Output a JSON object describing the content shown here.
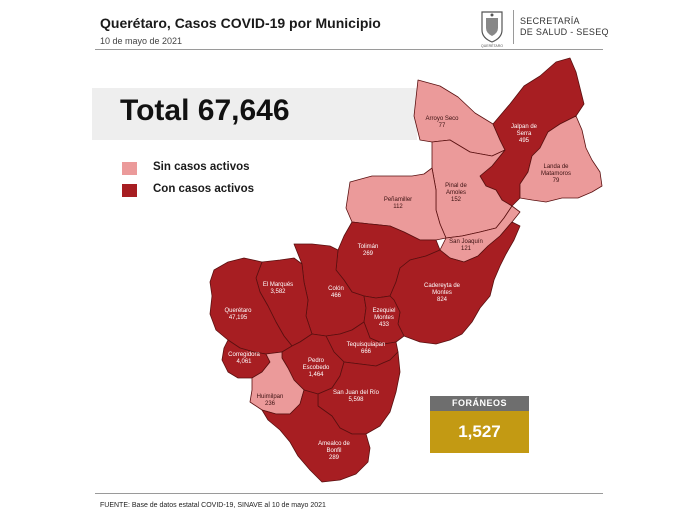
{
  "header": {
    "title": "Querétaro, Casos COVID-19 por Municipio",
    "date": "10 de mayo de 2021",
    "org_line1": "SECRETARÍA",
    "org_line2": "DE SALUD - SESEQ",
    "logo_text": "QUERÉTARO"
  },
  "total": "Total 67,646",
  "legend": {
    "inactive": {
      "label": "Sin casos activos",
      "color": "#eb9a9a"
    },
    "active": {
      "label": "Con casos activos",
      "color": "#a71e22"
    }
  },
  "municipalities": {
    "arroyo_seco": {
      "name": "Arroyo Seco",
      "cases": "77",
      "status": "inactive"
    },
    "jalpan": {
      "name1": "Jalpan de",
      "name2": "Serra",
      "cases": "495",
      "status": "active"
    },
    "landa": {
      "name1": "Landa de",
      "name2": "Matamoros",
      "cases": "79",
      "status": "inactive"
    },
    "pinal": {
      "name1": "Pinal de",
      "name2": "Amoles",
      "cases": "152",
      "status": "inactive"
    },
    "penamiller": {
      "name": "Peñamiller",
      "cases": "112",
      "status": "inactive"
    },
    "san_joaquin": {
      "name": "San Joaquín",
      "cases": "121",
      "status": "inactive"
    },
    "toliman": {
      "name": "Tolimán",
      "cases": "269",
      "status": "active"
    },
    "cadereyta": {
      "name1": "Cadereyta de",
      "name2": "Montes",
      "cases": "824",
      "status": "active"
    },
    "colon": {
      "name": "Colón",
      "cases": "466",
      "status": "active"
    },
    "el_marques": {
      "name": "El Marqués",
      "cases": "3,582",
      "status": "active"
    },
    "queretaro": {
      "name": "Querétaro",
      "cases": "47,195",
      "status": "active"
    },
    "ezequiel": {
      "name1": "Ezequiel",
      "name2": "Montes",
      "cases": "433",
      "status": "active"
    },
    "tequisquiapan": {
      "name": "Tequisquiapan",
      "cases": "666",
      "status": "active"
    },
    "corregidora": {
      "name": "Corregidora",
      "cases": "4,061",
      "status": "active"
    },
    "pedro_escobedo": {
      "name1": "Pedro",
      "name2": "Escobedo",
      "cases": "1,464",
      "status": "active"
    },
    "huimilpan": {
      "name": "Huimilpan",
      "cases": "236",
      "status": "inactive"
    },
    "san_juan": {
      "name": "San Juan del Río",
      "cases": "5,598",
      "status": "active"
    },
    "amealco": {
      "name1": "Amealco de",
      "name2": "Bonfil",
      "cases": "289",
      "status": "active"
    }
  },
  "foraneos": {
    "label": "FORÁNEOS",
    "value": "1,527"
  },
  "source": "FUENTE:  Base de datos estatal COVID-19, SINAVE  al 10 de mayo 2021"
}
